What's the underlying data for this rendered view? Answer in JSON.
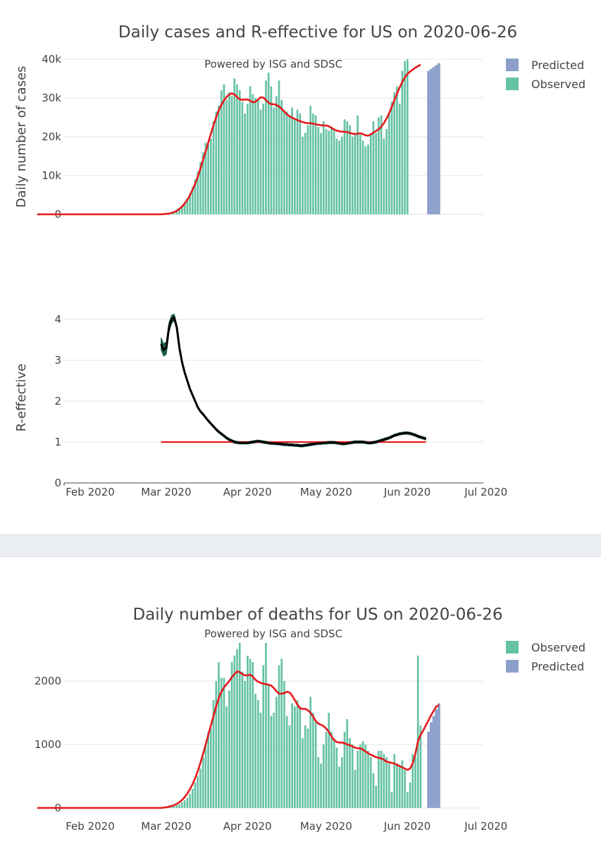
{
  "colors": {
    "observed": "#66c2a5",
    "predicted": "#8da0cb",
    "fit": "#e41a1c",
    "r_line": "#000000",
    "r_band": "#1b5e4a",
    "r_ref": "#e41a1c"
  },
  "chart_data": [
    {
      "type": "bar",
      "title": "Daily cases and R-effective for US on 2020-06-26",
      "subtitle": "Powered by ISG and SDSC",
      "ylabel": "Daily number of cases",
      "ylim": [
        0,
        40000
      ],
      "yticks": [
        0,
        10000,
        20000,
        30000,
        40000
      ],
      "ytick_labels": [
        "0",
        "10k",
        "20k",
        "30k",
        "40k"
      ],
      "xticks": [
        "Feb 2020",
        "Mar 2020",
        "Apr 2020",
        "May 2020",
        "Jun 2020",
        "Jul 2020"
      ],
      "legend": [
        "Predicted",
        "Observed"
      ],
      "x_start": "2020-01-22",
      "observed": [
        0,
        0,
        0,
        0,
        0,
        0,
        0,
        0,
        0,
        0,
        0,
        0,
        0,
        0,
        0,
        0,
        0,
        0,
        0,
        0,
        0,
        0,
        0,
        0,
        0,
        0,
        0,
        0,
        0,
        0,
        0,
        0,
        0,
        0,
        0,
        0,
        0,
        0,
        0,
        0,
        0,
        0,
        0,
        0,
        0,
        0,
        0,
        0,
        150,
        250,
        400,
        550,
        750,
        1200,
        1700,
        2400,
        3200,
        4200,
        5500,
        7000,
        9000,
        11000,
        13500,
        16000,
        18500,
        18000,
        19500,
        24000,
        26500,
        28000,
        32000,
        33500,
        29500,
        31500,
        30500,
        35000,
        33500,
        32000,
        29000,
        26000,
        28500,
        33000,
        31000,
        30000,
        29500,
        27000,
        28500,
        34500,
        36500,
        33000,
        27500,
        30500,
        34500,
        29500,
        27000,
        26500,
        25500,
        27500,
        24500,
        27000,
        26000,
        20000,
        21000,
        23000,
        28000,
        26000,
        25500,
        22500,
        21000,
        24000,
        22000,
        21500,
        22500,
        22000,
        19500,
        19000,
        20000,
        24500,
        24000,
        23000,
        20000,
        21000,
        25500,
        20500,
        19000,
        17500,
        18000,
        20500,
        24000,
        21000,
        25000,
        25500,
        19500,
        22000,
        26000,
        29000,
        31500,
        33000,
        28500,
        37000,
        39500,
        40000
      ],
      "predicted": [
        37000,
        37500,
        38000,
        38500,
        39000
      ],
      "fit": [
        0,
        0,
        0,
        0,
        0,
        0,
        0,
        0,
        0,
        0,
        0,
        0,
        0,
        0,
        0,
        0,
        0,
        0,
        0,
        0,
        0,
        0,
        0,
        0,
        0,
        0,
        0,
        0,
        0,
        0,
        0,
        0,
        0,
        0,
        0,
        0,
        0,
        0,
        0,
        0,
        0,
        0,
        0,
        0,
        0,
        0,
        0,
        0,
        50,
        100,
        200,
        350,
        600,
        900,
        1400,
        2000,
        2800,
        3700,
        4900,
        6300,
        7900,
        9700,
        11800,
        14000,
        16200,
        18500,
        20800,
        23000,
        25000,
        26800,
        28200,
        29400,
        30300,
        30900,
        31200,
        30900,
        30200,
        29700,
        29500,
        29600,
        29600,
        29300,
        28900,
        29000,
        29600,
        30200,
        30100,
        29500,
        28800,
        28400,
        28400,
        28200,
        27800,
        27200,
        26500,
        25800,
        25300,
        24900,
        24600,
        24300,
        24000,
        23800,
        23600,
        23500,
        23500,
        23400,
        23200,
        23100,
        23000,
        22900,
        22900,
        22700,
        22300,
        21900,
        21600,
        21400,
        21300,
        21300,
        21200,
        21000,
        20800,
        20700,
        20800,
        20900,
        20700,
        20400,
        20300,
        20600,
        21100,
        21500,
        21900,
        22600,
        23500,
        24700,
        26100,
        27700,
        29400,
        31100,
        32700,
        34100,
        35300,
        36200,
        36800,
        37300,
        37800,
        38200,
        38600
      ],
      "predicted_start_index": 148
    },
    {
      "type": "line",
      "ylabel": "R-effective",
      "ylim": [
        0,
        4.3
      ],
      "yticks": [
        0,
        1,
        2,
        3,
        4
      ],
      "xticks": [
        "Feb 2020",
        "Mar 2020",
        "Apr 2020",
        "May 2020",
        "Jun 2020",
        "Jul 2020"
      ],
      "start_index": 47,
      "r": [
        3.4,
        3.25,
        3.3,
        3.8,
        4.0,
        4.05,
        3.8,
        3.3,
        2.95,
        2.7,
        2.5,
        2.3,
        2.15,
        2.0,
        1.85,
        1.75,
        1.68,
        1.6,
        1.52,
        1.45,
        1.38,
        1.31,
        1.25,
        1.2,
        1.15,
        1.1,
        1.06,
        1.03,
        1.0,
        0.99,
        0.98,
        0.98,
        0.98,
        0.98,
        0.99,
        1.0,
        1.01,
        1.02,
        1.01,
        1.0,
        0.99,
        0.98,
        0.97,
        0.97,
        0.96,
        0.96,
        0.95,
        0.94,
        0.94,
        0.93,
        0.93,
        0.92,
        0.92,
        0.91,
        0.91,
        0.92,
        0.93,
        0.94,
        0.95,
        0.96,
        0.97,
        0.97,
        0.98,
        0.98,
        0.99,
        0.99,
        0.99,
        0.98,
        0.97,
        0.96,
        0.96,
        0.97,
        0.98,
        0.99,
        1.0,
        1.0,
        1.0,
        1.0,
        0.99,
        0.98,
        0.98,
        0.99,
        1.0,
        1.02,
        1.04,
        1.06,
        1.08,
        1.1,
        1.13,
        1.16,
        1.18,
        1.2,
        1.21,
        1.22,
        1.22,
        1.21,
        1.19,
        1.17,
        1.14,
        1.12,
        1.1,
        1.08
      ],
      "band_width": [
        0.15,
        0.15,
        0.15,
        0.12,
        0.1,
        0.08,
        0.06,
        0.04
      ],
      "reference": 1
    },
    {
      "type": "bar",
      "title": "Daily number of deaths for US on 2020-06-26",
      "subtitle": "Powered by ISG and SDSC",
      "ylim": [
        0,
        2600
      ],
      "yticks": [
        0,
        1000,
        2000
      ],
      "ytick_labels": [
        "0",
        "1000",
        "2000"
      ],
      "xticks": [
        "Feb 2020",
        "Mar 2020",
        "Apr 2020",
        "May 2020",
        "Jun 2020",
        "Jul 2020"
      ],
      "legend": [
        "Observed",
        "Predicted"
      ],
      "x_start": "2020-01-22",
      "observed": [
        0,
        0,
        0,
        0,
        0,
        0,
        0,
        0,
        0,
        0,
        0,
        0,
        0,
        0,
        0,
        0,
        0,
        0,
        0,
        0,
        0,
        0,
        0,
        0,
        0,
        0,
        0,
        0,
        0,
        0,
        0,
        0,
        0,
        0,
        0,
        0,
        0,
        0,
        0,
        0,
        0,
        0,
        0,
        0,
        0,
        0,
        0,
        0,
        5,
        10,
        15,
        20,
        30,
        45,
        60,
        90,
        120,
        160,
        220,
        300,
        400,
        500,
        620,
        800,
        1000,
        1200,
        1250,
        1700,
        2000,
        2300,
        2050,
        2050,
        1600,
        1850,
        2300,
        2400,
        2500,
        2600,
        2150,
        2000,
        2400,
        2350,
        2300,
        1800,
        1700,
        1500,
        2250,
        2600,
        1950,
        1450,
        1500,
        1750,
        2250,
        2350,
        2000,
        1450,
        1300,
        1650,
        1600,
        1700,
        1600,
        1100,
        1300,
        1250,
        1750,
        1500,
        1350,
        800,
        700,
        1000,
        1200,
        1500,
        1200,
        1100,
        950,
        650,
        800,
        1200,
        1400,
        1100,
        1000,
        600,
        900,
        1000,
        1050,
        1000,
        900,
        800,
        550,
        350,
        900,
        900,
        850,
        800,
        700,
        250,
        850,
        700,
        650,
        750,
        600,
        250,
        400,
        850,
        800,
        2400,
        1300
      ],
      "predicted": [
        1200,
        1350,
        1450,
        1550,
        1650
      ],
      "fit": [
        0,
        0,
        0,
        0,
        0,
        0,
        0,
        0,
        0,
        0,
        0,
        0,
        0,
        0,
        0,
        0,
        0,
        0,
        0,
        0,
        0,
        0,
        0,
        0,
        0,
        0,
        0,
        0,
        0,
        0,
        0,
        0,
        0,
        0,
        0,
        0,
        0,
        0,
        0,
        0,
        0,
        0,
        0,
        0,
        0,
        0,
        0,
        0,
        5,
        10,
        20,
        30,
        45,
        65,
        90,
        125,
        170,
        225,
        295,
        375,
        470,
        580,
        710,
        850,
        1000,
        1150,
        1300,
        1450,
        1600,
        1730,
        1830,
        1900,
        1950,
        2000,
        2060,
        2110,
        2150,
        2140,
        2110,
        2090,
        2090,
        2100,
        2070,
        2020,
        1990,
        1970,
        1960,
        1950,
        1940,
        1930,
        1890,
        1840,
        1800,
        1800,
        1810,
        1830,
        1820,
        1770,
        1700,
        1630,
        1570,
        1560,
        1560,
        1540,
        1500,
        1440,
        1370,
        1330,
        1310,
        1290,
        1250,
        1200,
        1130,
        1070,
        1040,
        1030,
        1030,
        1020,
        1000,
        990,
        970,
        950,
        940,
        940,
        920,
        890,
        860,
        840,
        820,
        800,
        790,
        780,
        760,
        730,
        720,
        710,
        700,
        680,
        660,
        640,
        620,
        600,
        620,
        700,
        850,
        1050,
        1150,
        1220,
        1300,
        1380,
        1460,
        1530,
        1600,
        1620
      ],
      "predicted_start_index": 148
    }
  ]
}
